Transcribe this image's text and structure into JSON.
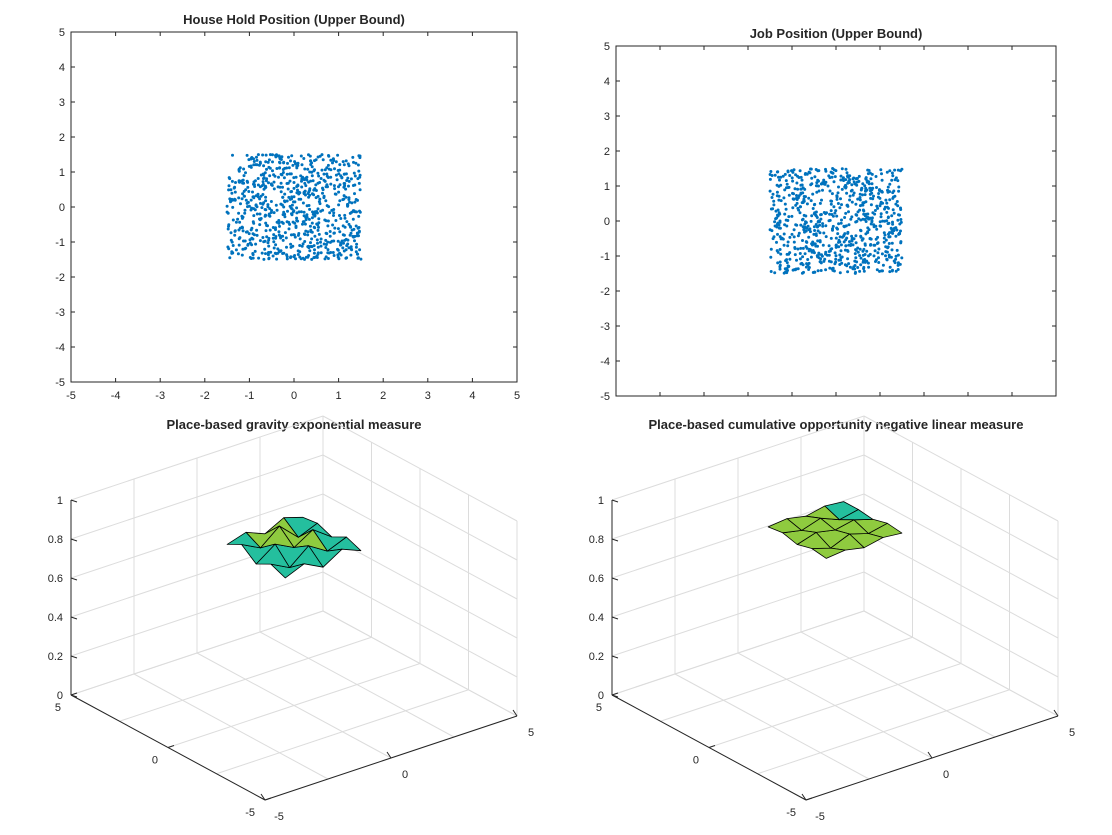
{
  "chart_data": [
    {
      "type": "scatter",
      "title": "House Hold Position (Upper Bound)",
      "xlim": [
        -5,
        5
      ],
      "ylim": [
        -5,
        5
      ],
      "xticks": [
        "-5",
        "-4",
        "-3",
        "-2",
        "-1",
        "0",
        "1",
        "2",
        "3",
        "4",
        "5"
      ],
      "yticks": [
        "-5",
        "-4",
        "-3",
        "-2",
        "-1",
        "0",
        "1",
        "2",
        "3",
        "4",
        "5"
      ],
      "grid": false,
      "marker_color": "#0072bd",
      "point_count": 800,
      "x_range": [
        -1.5,
        1.5
      ],
      "y_range": [
        -1.5,
        1.5
      ],
      "distribution": "uniform"
    },
    {
      "type": "scatter",
      "title": "Job Position (Upper Bound)",
      "xlim": [
        -5,
        5
      ],
      "ylim": [
        -5,
        5
      ],
      "xticks": [],
      "yticks": [
        "-5",
        "-4",
        "-3",
        "-2",
        "-1",
        "0",
        "1",
        "2",
        "3",
        "4",
        "5"
      ],
      "grid": false,
      "marker_color": "#0072bd",
      "point_count": 800,
      "x_range": [
        -1.5,
        1.5
      ],
      "y_range": [
        -1.5,
        1.5
      ],
      "distribution": "uniform"
    },
    {
      "type": "surface",
      "title": "Place-based gravity exponential measure",
      "xlim": [
        -5,
        5
      ],
      "ylim": [
        -5,
        5
      ],
      "zlim": [
        0,
        1
      ],
      "zticks": [
        "0",
        "0.2",
        "0.4",
        "0.6",
        "0.8",
        "1"
      ],
      "xticks": [
        "-5",
        "0",
        "5"
      ],
      "yticks": [
        "5",
        "0",
        "-5"
      ],
      "grid": true,
      "grid_x": [
        -1.5,
        -0.75,
        0,
        0.75,
        1.5
      ],
      "grid_y": [
        -1.5,
        -0.75,
        0,
        0.75,
        1.5
      ],
      "z": [
        [
          0.8,
          0.84,
          0.79,
          0.85,
          0.81
        ],
        [
          0.83,
          0.78,
          0.86,
          0.8,
          0.84
        ],
        [
          0.79,
          0.86,
          0.81,
          0.87,
          0.8
        ],
        [
          0.85,
          0.8,
          0.88,
          0.79,
          0.83
        ],
        [
          0.81,
          0.84,
          0.8,
          0.85,
          0.82
        ]
      ],
      "colormap": [
        "#3e26a8",
        "#2d8ee6",
        "#24bf9e",
        "#8fcb3f",
        "#f0b92b",
        "#f9fb15"
      ]
    },
    {
      "type": "surface",
      "title": "Place-based cumulative opportunity negative linear measure",
      "xlim": [
        -5,
        5
      ],
      "ylim": [
        -5,
        5
      ],
      "zlim": [
        0,
        1
      ],
      "zticks": [
        "0",
        "0.2",
        "0.4",
        "0.6",
        "0.8",
        "1"
      ],
      "xticks": [
        "-5",
        "0",
        "5"
      ],
      "yticks": [
        "5",
        "0",
        "-5"
      ],
      "grid": true,
      "grid_x": [
        -1.5,
        -0.75,
        0,
        0.75,
        1.5
      ],
      "grid_y": [
        -1.5,
        -0.75,
        0,
        0.75,
        1.5
      ],
      "z": [
        [
          0.9,
          0.91,
          0.89,
          0.91,
          0.9
        ],
        [
          0.91,
          0.88,
          0.92,
          0.89,
          0.91
        ],
        [
          0.89,
          0.92,
          0.9,
          0.92,
          0.89
        ],
        [
          0.91,
          0.89,
          0.92,
          0.88,
          0.9
        ],
        [
          0.9,
          0.91,
          0.89,
          0.91,
          0.9
        ]
      ],
      "colormap": [
        "#3e26a8",
        "#2d8ee6",
        "#24bf9e",
        "#8fcb3f",
        "#f0b92b",
        "#f9fb15"
      ]
    }
  ]
}
